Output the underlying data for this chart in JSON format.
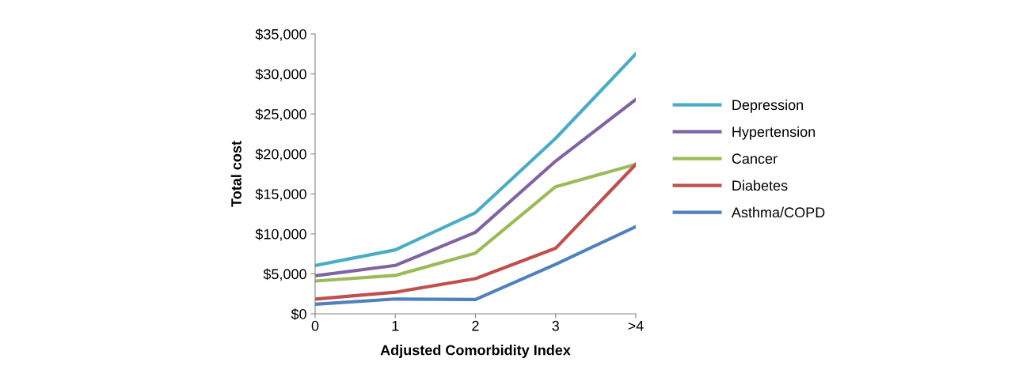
{
  "chart_data": {
    "type": "line",
    "xlabel": "Adjusted Comorbidity Index",
    "ylabel": "Total cost",
    "categories": [
      "0",
      "1",
      "2",
      "3",
      ">4"
    ],
    "series": [
      {
        "name": "Depression",
        "color": "#4bacc6",
        "values": [
          6050,
          8000,
          12650,
          21950,
          32500
        ]
      },
      {
        "name": "Hypertension",
        "color": "#8064a2",
        "values": [
          4750,
          6050,
          10200,
          19100,
          26800
        ]
      },
      {
        "name": "Cancer",
        "color": "#9bbb59",
        "values": [
          4100,
          4800,
          7600,
          15900,
          18700
        ]
      },
      {
        "name": "Diabetes",
        "color": "#c0504d",
        "values": [
          1850,
          2700,
          4400,
          8200,
          18700
        ]
      },
      {
        "name": "Asthma/COPD",
        "color": "#4f81bd",
        "values": [
          1200,
          1850,
          1800,
          6200,
          10900
        ]
      }
    ],
    "ylim": [
      0,
      35000
    ],
    "yticks": [
      {
        "value": 0,
        "label": "$0"
      },
      {
        "value": 5000,
        "label": "$5,000"
      },
      {
        "value": 10000,
        "label": "$10,000"
      },
      {
        "value": 15000,
        "label": "$15,000"
      },
      {
        "value": 20000,
        "label": "$20,000"
      },
      {
        "value": 25000,
        "label": "$25,000"
      },
      {
        "value": 30000,
        "label": "$30,000"
      },
      {
        "value": 35000,
        "label": "$35,000"
      }
    ],
    "grid": false,
    "legend": "right",
    "marker": "none",
    "line_style": "solid"
  }
}
